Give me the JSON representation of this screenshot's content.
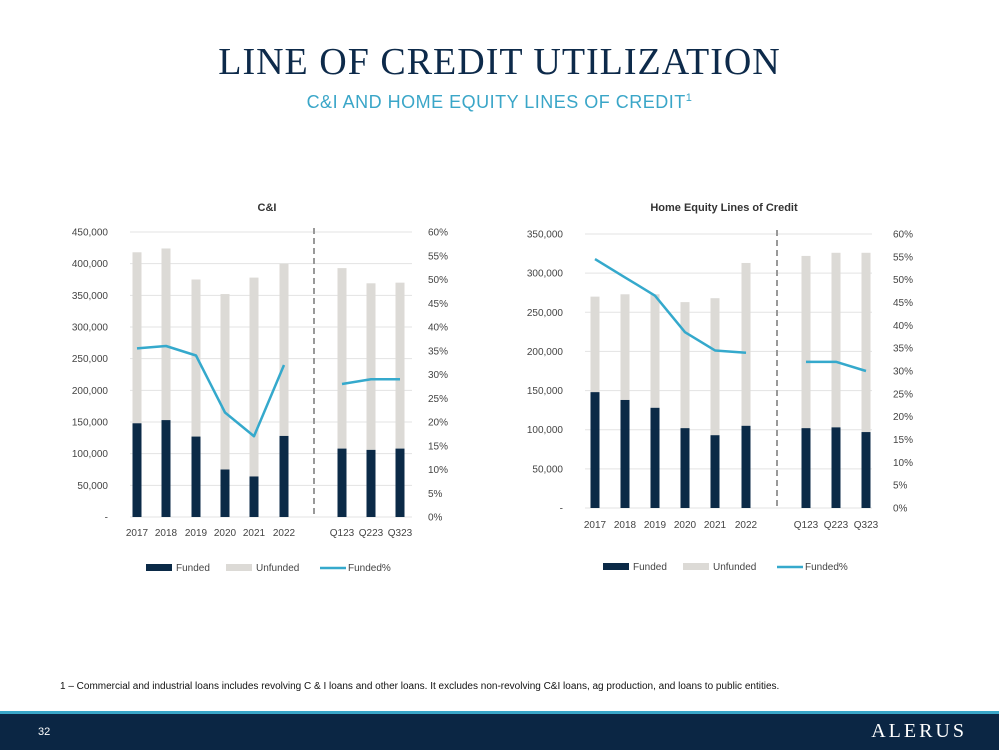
{
  "header": {
    "title": "LINE OF CREDIT UTILIZATION",
    "subtitle": "C&I AND HOME EQUITY LINES OF CREDIT",
    "subtitle_sup": "1"
  },
  "colors": {
    "funded": "#0b2a47",
    "unfunded": "#dcdad6",
    "funded_pct": "#35a9cc"
  },
  "chart_data": [
    {
      "type": "bar",
      "title": "C&I",
      "categories": [
        "2017",
        "2018",
        "2019",
        "2020",
        "2021",
        "2022",
        "Q123",
        "Q223",
        "Q323"
      ],
      "series": [
        {
          "name": "Funded",
          "type": "bar",
          "values": [
            148000,
            153000,
            127000,
            75000,
            64000,
            128000,
            108000,
            106000,
            108000
          ]
        },
        {
          "name": "Unfunded",
          "type": "bar",
          "values": [
            270000,
            271000,
            248000,
            277000,
            314000,
            272000,
            285000,
            263000,
            262000
          ]
        },
        {
          "name": "Funded%",
          "type": "line",
          "axis": "right",
          "values": [
            35.5,
            36,
            34,
            22,
            17,
            32,
            28,
            29,
            29
          ]
        }
      ],
      "yticks_left": [
        "-",
        "50,000",
        "100,000",
        "150,000",
        "200,000",
        "250,000",
        "300,000",
        "350,000",
        "400,000",
        "450,000"
      ],
      "yticks_right": [
        "0%",
        "5%",
        "10%",
        "15%",
        "20%",
        "25%",
        "30%",
        "35%",
        "40%",
        "45%",
        "50%",
        "55%",
        "60%"
      ],
      "ylim_left": [
        0,
        450000
      ],
      "ylim_right": [
        0,
        60
      ],
      "legend": [
        "Funded",
        "Unfunded",
        "Funded%"
      ],
      "legend_position": "bottom"
    },
    {
      "type": "bar",
      "title": "Home Equity Lines of Credit",
      "categories": [
        "2017",
        "2018",
        "2019",
        "2020",
        "2021",
        "2022",
        "Q123",
        "Q223",
        "Q323"
      ],
      "series": [
        {
          "name": "Funded",
          "type": "bar",
          "values": [
            148000,
            138000,
            128000,
            102000,
            93000,
            105000,
            102000,
            103000,
            97000
          ]
        },
        {
          "name": "Unfunded",
          "type": "bar",
          "values": [
            122000,
            135000,
            145000,
            161000,
            175000,
            208000,
            220000,
            223000,
            229000
          ]
        },
        {
          "name": "Funded%",
          "type": "line",
          "axis": "right",
          "values": [
            54.5,
            50.5,
            46.5,
            38.5,
            34.5,
            34,
            32,
            32,
            30
          ]
        }
      ],
      "yticks_left": [
        "-",
        "50,000",
        "100,000",
        "150,000",
        "200,000",
        "250,000",
        "300,000",
        "350,000"
      ],
      "yticks_right": [
        "0%",
        "5%",
        "10%",
        "15%",
        "20%",
        "25%",
        "30%",
        "35%",
        "40%",
        "45%",
        "50%",
        "55%",
        "60%"
      ],
      "ylim_left": [
        0,
        350000
      ],
      "ylim_right": [
        0,
        60
      ],
      "legend": [
        "Funded",
        "Unfunded",
        "Funded%"
      ],
      "legend_position": "bottom"
    }
  ],
  "footnote": "1 – Commercial and industrial loans includes revolving C & I loans and other loans. It excludes non-revolving C&I loans, ag production, and loans to public entities.",
  "footer": {
    "page_number": "32",
    "logo": "ALERUS"
  }
}
